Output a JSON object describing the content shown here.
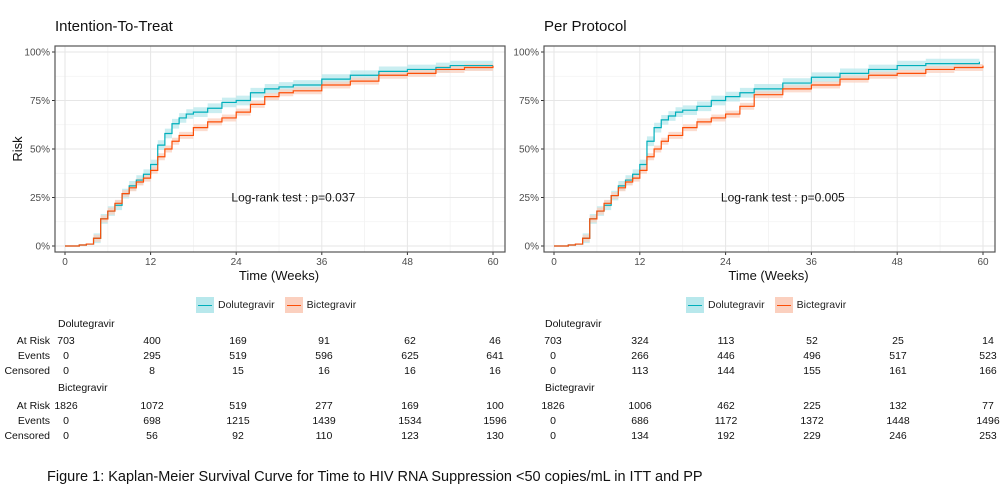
{
  "colors": {
    "Dolutegravir": "#00AFBB",
    "Bictegravir": "#FC4E07",
    "Dolutegravir_band": "#b8e8ec",
    "Bictegravir_band": "#fbd0bf"
  },
  "chart_data": [
    {
      "type": "line",
      "step": true,
      "title": "Intention-To-Treat",
      "xlabel": "Time (Weeks)",
      "ylabel": "Risk",
      "xlim": [
        0,
        60
      ],
      "ylim": [
        0,
        100
      ],
      "xticks": [
        0,
        12,
        24,
        36,
        48,
        60
      ],
      "yticks": [
        "0%",
        "25%",
        "50%",
        "75%",
        "100%"
      ],
      "grid": true,
      "annotation": "Log-rank test : p=0.037",
      "legend_position": "bottom",
      "series": [
        {
          "name": "Dolutegravir",
          "ci_halfwidth": 2.5,
          "x": [
            0,
            2,
            3,
            4,
            5,
            6,
            7,
            8,
            9,
            10,
            11,
            12,
            13,
            14,
            15,
            16,
            17,
            18,
            20,
            22,
            24,
            26,
            28,
            30,
            32,
            36,
            40,
            44,
            48,
            52,
            54,
            58,
            60
          ],
          "y": [
            0,
            0.5,
            1,
            4,
            14,
            18,
            21,
            27,
            31,
            34,
            37,
            42,
            52,
            58,
            63,
            66,
            68,
            69,
            71,
            74,
            75,
            79,
            81,
            82,
            83,
            86,
            88,
            90,
            91,
            92,
            93,
            93,
            93
          ]
        },
        {
          "name": "Bictegravir",
          "ci_halfwidth": 1.8,
          "x": [
            0,
            2,
            3,
            4,
            5,
            6,
            7,
            8,
            9,
            10,
            11,
            12,
            13,
            14,
            15,
            16,
            18,
            20,
            22,
            24,
            26,
            28,
            30,
            32,
            36,
            40,
            44,
            48,
            52,
            56,
            60
          ],
          "y": [
            0,
            0.5,
            1,
            4,
            14,
            18,
            22,
            27,
            30,
            33,
            35,
            39,
            46,
            50,
            54,
            57,
            61,
            64,
            66,
            69,
            73,
            77,
            79,
            80,
            83,
            85,
            88,
            89,
            91,
            92,
            93
          ]
        }
      ]
    },
    {
      "type": "line",
      "step": true,
      "title": "Per Protocol",
      "xlabel": "Time (Weeks)",
      "ylabel": "",
      "xlim": [
        0,
        60
      ],
      "ylim": [
        0,
        100
      ],
      "xticks": [
        0,
        12,
        24,
        36,
        48,
        60
      ],
      "yticks": [
        "0%",
        "25%",
        "50%",
        "75%",
        "100%"
      ],
      "grid": true,
      "annotation": "Log-rank test : p=0.005",
      "legend_position": "bottom",
      "series": [
        {
          "name": "Dolutegravir",
          "ci_halfwidth": 2.5,
          "x": [
            0,
            2,
            3,
            4,
            5,
            6,
            7,
            8,
            9,
            10,
            11,
            12,
            13,
            14,
            15,
            16,
            17,
            18,
            20,
            22,
            24,
            26,
            28,
            32,
            36,
            40,
            44,
            48,
            52,
            56,
            59.5
          ],
          "y": [
            0,
            0.5,
            1,
            4,
            14,
            18,
            21,
            26,
            31,
            34,
            37,
            42,
            54,
            61,
            65,
            67,
            69,
            70,
            72,
            75,
            77,
            79,
            81,
            84,
            87,
            89,
            91,
            93,
            94,
            94,
            95
          ]
        },
        {
          "name": "Bictegravir",
          "ci_halfwidth": 1.8,
          "x": [
            0,
            2,
            3,
            4,
            5,
            6,
            7,
            8,
            9,
            10,
            11,
            12,
            13,
            14,
            15,
            16,
            18,
            20,
            22,
            24,
            26,
            28,
            32,
            36,
            40,
            44,
            48,
            52,
            56,
            60
          ],
          "y": [
            0,
            0.5,
            1,
            4,
            14,
            18,
            22,
            26,
            30,
            33,
            35,
            39,
            46,
            50,
            54,
            57,
            61,
            64,
            66,
            68,
            72,
            78,
            81,
            83,
            86,
            88,
            89,
            91,
            92,
            93
          ]
        }
      ]
    }
  ],
  "legend": [
    "Dolutegravir",
    "Bictegravir"
  ],
  "tables": [
    {
      "groups": [
        {
          "name": "Dolutegravir",
          "rows": [
            {
              "label": "At Risk",
              "values": [
                "703",
                "400",
                "169",
                "91",
                "62",
                "46"
              ]
            },
            {
              "label": "Events",
              "values": [
                "0",
                "295",
                "519",
                "596",
                "625",
                "641"
              ]
            },
            {
              "label": "Censored",
              "values": [
                "0",
                "8",
                "15",
                "16",
                "16",
                "16"
              ]
            }
          ]
        },
        {
          "name": "Bictegravir",
          "rows": [
            {
              "label": "At Risk",
              "values": [
                "1826",
                "1072",
                "519",
                "277",
                "169",
                "100"
              ]
            },
            {
              "label": "Events",
              "values": [
                "0",
                "698",
                "1215",
                "1439",
                "1534",
                "1596"
              ]
            },
            {
              "label": "Censored",
              "values": [
                "0",
                "56",
                "92",
                "110",
                "123",
                "130"
              ]
            }
          ]
        }
      ]
    },
    {
      "groups": [
        {
          "name": "Dolutegravir",
          "rows": [
            {
              "label": "",
              "values": [
                "703",
                "324",
                "113",
                "52",
                "25",
                "14"
              ]
            },
            {
              "label": "",
              "values": [
                "0",
                "266",
                "446",
                "496",
                "517",
                "523"
              ]
            },
            {
              "label": "",
              "values": [
                "0",
                "113",
                "144",
                "155",
                "161",
                "166"
              ]
            }
          ]
        },
        {
          "name": "Bictegravir",
          "rows": [
            {
              "label": "",
              "values": [
                "1826",
                "1006",
                "462",
                "225",
                "132",
                "77"
              ]
            },
            {
              "label": "",
              "values": [
                "0",
                "686",
                "1172",
                "1372",
                "1448",
                "1496"
              ]
            },
            {
              "label": "",
              "values": [
                "0",
                "134",
                "192",
                "229",
                "246",
                "253"
              ]
            }
          ]
        }
      ]
    }
  ],
  "caption": "Figure 1: Kaplan-Meier Survival Curve for Time to HIV RNA Suppression <50 copies/mL in ITT and PP"
}
